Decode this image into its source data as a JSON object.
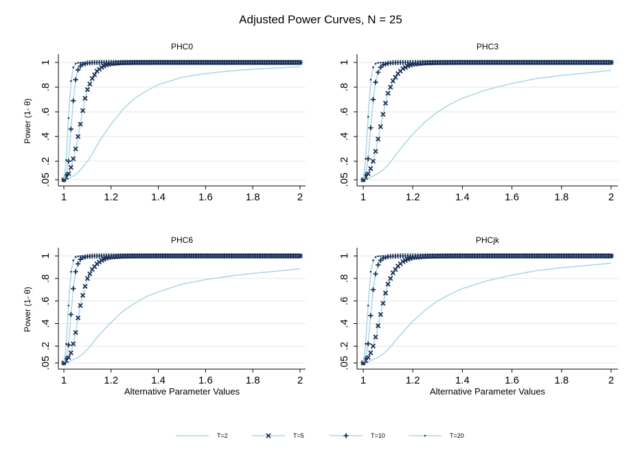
{
  "figure": {
    "title": "Adjusted Power Curves, N = 25",
    "colors": {
      "line": "#add8e6",
      "marker": "#1a2f55",
      "grid": "#e6e6e6",
      "axis": "#000000"
    }
  },
  "legend": [
    {
      "label": "T=2",
      "marker": "none"
    },
    {
      "label": "T=5",
      "marker": "x"
    },
    {
      "label": "T=10",
      "marker": "plus"
    },
    {
      "label": "T=20",
      "marker": "dot"
    }
  ],
  "chart_data": [
    {
      "type": "line",
      "title": "PHC0",
      "xlabel": "",
      "ylabel": "Power (1- θ)",
      "xlim": [
        1,
        2
      ],
      "ylim": [
        0.05,
        1
      ],
      "xticks": [
        "1",
        "1.2",
        "1.4",
        "1.6",
        "1.8",
        "2"
      ],
      "yticks": [
        ".05",
        ".2",
        ".4",
        ".6",
        ".8",
        "1"
      ],
      "grid": true,
      "series": [
        {
          "name": "T=2",
          "x": [
            1,
            1.02,
            1.04,
            1.06,
            1.08,
            1.1,
            1.12,
            1.15,
            1.2,
            1.25,
            1.3,
            1.35,
            1.4,
            1.5,
            1.6,
            1.7,
            1.8,
            1.9,
            2
          ],
          "y": [
            0.05,
            0.06,
            0.08,
            0.11,
            0.15,
            0.2,
            0.26,
            0.36,
            0.5,
            0.62,
            0.71,
            0.77,
            0.82,
            0.88,
            0.91,
            0.93,
            0.945,
            0.955,
            0.965
          ]
        },
        {
          "name": "T=5",
          "x": [
            1,
            1.01,
            1.02,
            1.03,
            1.04,
            1.05,
            1.06,
            1.07,
            1.08,
            1.09,
            1.1,
            1.12,
            1.14,
            1.16,
            1.18,
            1.2,
            1.25,
            1.3,
            1.4,
            1.6,
            1.8,
            2
          ],
          "y": [
            0.05,
            0.07,
            0.1,
            0.15,
            0.22,
            0.3,
            0.4,
            0.5,
            0.61,
            0.71,
            0.78,
            0.87,
            0.93,
            0.96,
            0.98,
            0.99,
            0.997,
            0.999,
            1,
            1,
            1,
            1
          ]
        },
        {
          "name": "T=10",
          "x": [
            1,
            1.01,
            1.02,
            1.03,
            1.04,
            1.05,
            1.06,
            1.07,
            1.08,
            1.1,
            1.12,
            1.15,
            1.2,
            1.4,
            1.6,
            1.8,
            2
          ],
          "y": [
            0.05,
            0.09,
            0.2,
            0.46,
            0.69,
            0.86,
            0.94,
            0.97,
            0.985,
            0.995,
            0.999,
            1,
            1,
            1,
            1,
            1,
            1
          ]
        },
        {
          "name": "T=20",
          "x": [
            1,
            1.005,
            1.01,
            1.015,
            1.02,
            1.025,
            1.03,
            1.04,
            1.05,
            1.06,
            1.08,
            1.1,
            1.2,
            1.4,
            1.6,
            1.8,
            2
          ],
          "y": [
            0.05,
            0.1,
            0.21,
            0.39,
            0.55,
            0.71,
            0.85,
            0.96,
            0.99,
            0.997,
            1,
            1,
            1,
            1,
            1,
            1,
            1
          ]
        }
      ]
    },
    {
      "type": "line",
      "title": "PHC3",
      "xlabel": "",
      "ylabel": "",
      "xlim": [
        1,
        2
      ],
      "ylim": [
        0.05,
        1
      ],
      "xticks": [
        "1",
        "1.2",
        "1.4",
        "1.6",
        "1.8",
        "2"
      ],
      "yticks": [
        ".05",
        ".2",
        ".4",
        ".6",
        ".8",
        "1"
      ],
      "grid": true,
      "series": [
        {
          "name": "T=2",
          "x": [
            1,
            1.02,
            1.04,
            1.06,
            1.08,
            1.1,
            1.12,
            1.15,
            1.2,
            1.25,
            1.3,
            1.35,
            1.4,
            1.5,
            1.6,
            1.7,
            1.8,
            1.9,
            2
          ],
          "y": [
            0.05,
            0.06,
            0.08,
            0.1,
            0.13,
            0.17,
            0.22,
            0.3,
            0.42,
            0.52,
            0.6,
            0.66,
            0.71,
            0.78,
            0.83,
            0.87,
            0.895,
            0.915,
            0.935
          ]
        },
        {
          "name": "T=5",
          "x": [
            1,
            1.01,
            1.02,
            1.03,
            1.04,
            1.05,
            1.06,
            1.07,
            1.08,
            1.09,
            1.1,
            1.12,
            1.14,
            1.16,
            1.18,
            1.2,
            1.25,
            1.3,
            1.4,
            1.6,
            1.8,
            2
          ],
          "y": [
            0.05,
            0.07,
            0.1,
            0.14,
            0.2,
            0.28,
            0.38,
            0.48,
            0.58,
            0.67,
            0.75,
            0.85,
            0.91,
            0.95,
            0.97,
            0.985,
            0.995,
            0.998,
            1,
            1,
            1,
            1
          ]
        },
        {
          "name": "T=10",
          "x": [
            1,
            1.01,
            1.02,
            1.03,
            1.04,
            1.05,
            1.06,
            1.07,
            1.08,
            1.1,
            1.12,
            1.15,
            1.2,
            1.4,
            1.6,
            1.8,
            2
          ],
          "y": [
            0.05,
            0.09,
            0.22,
            0.47,
            0.7,
            0.84,
            0.92,
            0.96,
            0.98,
            0.993,
            0.998,
            1,
            1,
            1,
            1,
            1,
            1
          ]
        },
        {
          "name": "T=20",
          "x": [
            1,
            1.005,
            1.01,
            1.015,
            1.02,
            1.025,
            1.03,
            1.04,
            1.05,
            1.06,
            1.08,
            1.1,
            1.2,
            1.4,
            1.6,
            1.8,
            2
          ],
          "y": [
            0.05,
            0.1,
            0.22,
            0.4,
            0.56,
            0.72,
            0.86,
            0.96,
            0.99,
            0.997,
            1,
            1,
            1,
            1,
            1,
            1,
            1
          ]
        }
      ]
    },
    {
      "type": "line",
      "title": "PHC6",
      "xlabel": "Alternative Parameter Values",
      "ylabel": "Power (1- θ)",
      "xlim": [
        1,
        2
      ],
      "ylim": [
        0.05,
        1
      ],
      "xticks": [
        "1",
        "1.2",
        "1.4",
        "1.6",
        "1.8",
        "2"
      ],
      "yticks": [
        ".05",
        ".2",
        ".4",
        ".6",
        ".8",
        "1"
      ],
      "grid": true,
      "series": [
        {
          "name": "T=2",
          "x": [
            1,
            1.02,
            1.04,
            1.06,
            1.08,
            1.1,
            1.12,
            1.15,
            1.2,
            1.25,
            1.3,
            1.35,
            1.4,
            1.5,
            1.6,
            1.7,
            1.8,
            1.9,
            2
          ],
          "y": [
            0.05,
            0.06,
            0.08,
            0.1,
            0.13,
            0.17,
            0.22,
            0.3,
            0.41,
            0.51,
            0.58,
            0.64,
            0.68,
            0.75,
            0.79,
            0.82,
            0.845,
            0.865,
            0.885
          ]
        },
        {
          "name": "T=5",
          "x": [
            1,
            1.01,
            1.02,
            1.03,
            1.04,
            1.05,
            1.06,
            1.07,
            1.08,
            1.09,
            1.1,
            1.12,
            1.14,
            1.16,
            1.18,
            1.2,
            1.25,
            1.3,
            1.4,
            1.6,
            1.8,
            2
          ],
          "y": [
            0.05,
            0.07,
            0.1,
            0.14,
            0.22,
            0.32,
            0.45,
            0.56,
            0.65,
            0.73,
            0.8,
            0.88,
            0.93,
            0.96,
            0.98,
            0.99,
            0.997,
            0.999,
            1,
            1,
            1,
            1
          ]
        },
        {
          "name": "T=10",
          "x": [
            1,
            1.01,
            1.02,
            1.03,
            1.04,
            1.05,
            1.06,
            1.07,
            1.08,
            1.1,
            1.12,
            1.15,
            1.2,
            1.4,
            1.6,
            1.8,
            2
          ],
          "y": [
            0.05,
            0.09,
            0.21,
            0.48,
            0.71,
            0.86,
            0.93,
            0.97,
            0.985,
            0.995,
            0.999,
            1,
            1,
            1,
            1,
            1,
            1
          ]
        },
        {
          "name": "T=20",
          "x": [
            1,
            1.005,
            1.01,
            1.015,
            1.02,
            1.025,
            1.03,
            1.04,
            1.05,
            1.06,
            1.08,
            1.1,
            1.2,
            1.4,
            1.6,
            1.8,
            2
          ],
          "y": [
            0.05,
            0.1,
            0.22,
            0.4,
            0.56,
            0.72,
            0.86,
            0.96,
            0.99,
            0.997,
            1,
            1,
            1,
            1,
            1,
            1,
            1
          ]
        }
      ]
    },
    {
      "type": "line",
      "title": "PHCjk",
      "xlabel": "Alternative Parameter Values",
      "ylabel": "",
      "xlim": [
        1,
        2
      ],
      "ylim": [
        0.05,
        1
      ],
      "xticks": [
        "1",
        "1.2",
        "1.4",
        "1.6",
        "1.8",
        "2"
      ],
      "yticks": [
        ".05",
        ".2",
        ".4",
        ".6",
        ".8",
        "1"
      ],
      "grid": true,
      "series": [
        {
          "name": "T=2",
          "x": [
            1,
            1.02,
            1.04,
            1.06,
            1.08,
            1.1,
            1.12,
            1.15,
            1.2,
            1.25,
            1.3,
            1.35,
            1.4,
            1.5,
            1.6,
            1.7,
            1.8,
            1.9,
            2
          ],
          "y": [
            0.05,
            0.06,
            0.08,
            0.1,
            0.13,
            0.17,
            0.22,
            0.3,
            0.42,
            0.52,
            0.6,
            0.66,
            0.71,
            0.78,
            0.83,
            0.87,
            0.895,
            0.915,
            0.935
          ]
        },
        {
          "name": "T=5",
          "x": [
            1,
            1.01,
            1.02,
            1.03,
            1.04,
            1.05,
            1.06,
            1.07,
            1.08,
            1.09,
            1.1,
            1.12,
            1.14,
            1.16,
            1.18,
            1.2,
            1.25,
            1.3,
            1.4,
            1.6,
            1.8,
            2
          ],
          "y": [
            0.05,
            0.07,
            0.1,
            0.14,
            0.2,
            0.28,
            0.38,
            0.48,
            0.58,
            0.67,
            0.75,
            0.85,
            0.91,
            0.95,
            0.97,
            0.985,
            0.995,
            0.998,
            1,
            1,
            1,
            1
          ]
        },
        {
          "name": "T=10",
          "x": [
            1,
            1.01,
            1.02,
            1.03,
            1.04,
            1.05,
            1.06,
            1.07,
            1.08,
            1.1,
            1.12,
            1.15,
            1.2,
            1.4,
            1.6,
            1.8,
            2
          ],
          "y": [
            0.05,
            0.09,
            0.22,
            0.47,
            0.7,
            0.84,
            0.92,
            0.96,
            0.98,
            0.993,
            0.998,
            1,
            1,
            1,
            1,
            1,
            1
          ]
        },
        {
          "name": "T=20",
          "x": [
            1,
            1.005,
            1.01,
            1.015,
            1.02,
            1.025,
            1.03,
            1.04,
            1.05,
            1.06,
            1.08,
            1.1,
            1.2,
            1.4,
            1.6,
            1.8,
            2
          ],
          "y": [
            0.05,
            0.1,
            0.22,
            0.4,
            0.56,
            0.72,
            0.86,
            0.96,
            0.99,
            0.997,
            1,
            1,
            1,
            1,
            1,
            1,
            1
          ]
        }
      ]
    }
  ]
}
